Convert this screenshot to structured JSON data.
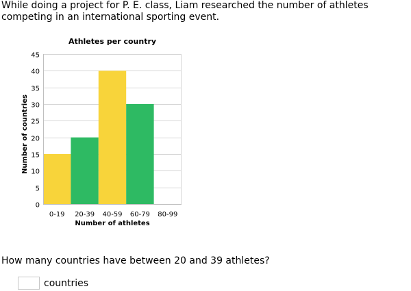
{
  "intro_text": "While doing a project for P. E. class, Liam researched the number of athletes competing in an international sporting event.",
  "question_text": "How many countries have between 20 and 39 athletes?",
  "answer": {
    "value": "",
    "placeholder": "",
    "unit": "countries"
  },
  "chart_data": {
    "type": "bar",
    "title": "Athletes per country",
    "xlabel": "Number of athletes",
    "ylabel": "Number of countries",
    "categories": [
      "0-19",
      "20-39",
      "40-59",
      "60-79",
      "80-99"
    ],
    "values": [
      15,
      20,
      40,
      30,
      0
    ],
    "bar_colors": [
      "#f8d43a",
      "#2eba63",
      "#f8d43a",
      "#2eba63",
      "#f8d43a"
    ],
    "ylim": [
      0,
      45
    ],
    "yticks": [
      0,
      5,
      10,
      15,
      20,
      25,
      30,
      35,
      40,
      45
    ],
    "grid": true,
    "legend": "none"
  }
}
